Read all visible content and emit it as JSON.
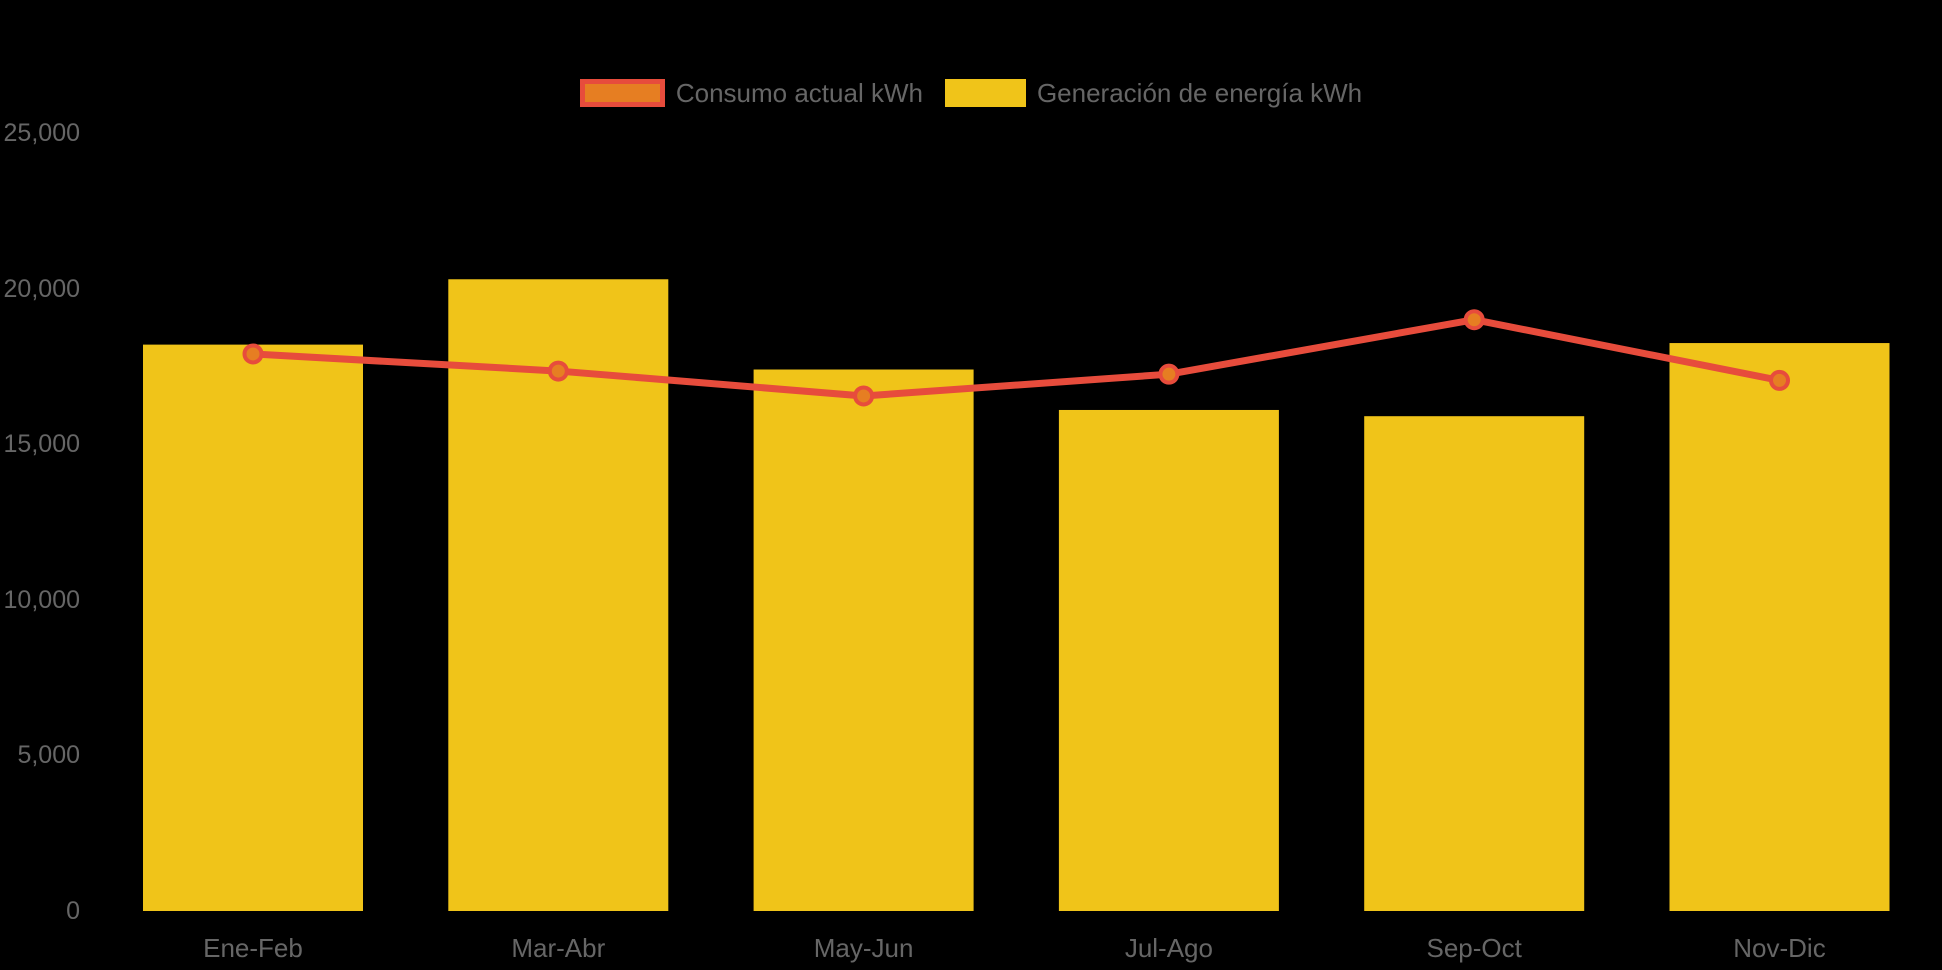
{
  "background_color": "#000000",
  "text_color": "#666666",
  "legend": {
    "items": [
      {
        "label": "Consumo actual kWh",
        "swatch_fill": "#E67E22",
        "swatch_border": "#E74C3C",
        "series_type": "line"
      },
      {
        "label": "Generación de energía kWh",
        "swatch_fill": "#F0C419",
        "swatch_border": "",
        "series_type": "bar"
      }
    ]
  },
  "chart_data": {
    "type": "bar",
    "subtype": "bar-and-line-combo",
    "title": "",
    "xlabel": "",
    "ylabel": "",
    "categories": [
      "Ene-Feb",
      "Mar-Abr",
      "May-Jun",
      "Jul-Ago",
      "Sep-Oct",
      "Nov-Dic"
    ],
    "series": [
      {
        "name": "Generación de energía kWh",
        "type": "bar",
        "color": "#F0C419",
        "values": [
          18200,
          20300,
          17400,
          16100,
          15900,
          18250
        ]
      },
      {
        "name": "Consumo actual kWh",
        "type": "line",
        "color": "#E74C3C",
        "marker_fill": "#E67E22",
        "marker_stroke": "#E74C3C",
        "values": [
          17900,
          17350,
          16550,
          17250,
          19000,
          17050
        ]
      }
    ],
    "ylim": [
      0,
      25000
    ],
    "y_ticks": [
      0,
      5000,
      10000,
      15000,
      20000,
      25000
    ],
    "y_tick_labels": [
      "0",
      "5,000",
      "10,000",
      "15,000",
      "20,000",
      "25,000"
    ],
    "grid": false,
    "axis_lines": false,
    "legend_position": "top-center"
  }
}
